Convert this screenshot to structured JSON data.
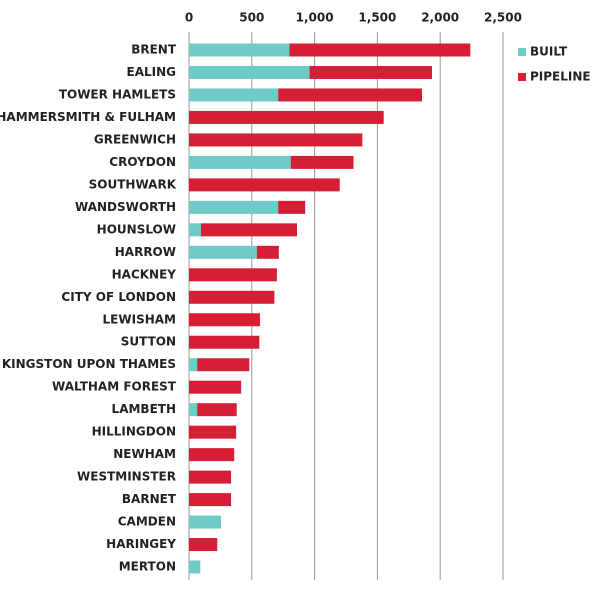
{
  "chart_data": {
    "type": "stacked-barh",
    "categories": [
      "BRENT",
      "EALING",
      "TOWER HAMLETS",
      "HAMMERSMITH & FULHAM",
      "GREENWICH",
      "CROYDON",
      "SOUTHWARK",
      "WANDSWORTH",
      "HOUNSLOW",
      "HARROW",
      "HACKNEY",
      "CITY OF LONDON",
      "LEWISHAM",
      "SUTTON",
      "KINGSTON UPON THAMES",
      "WALTHAM FOREST",
      "LAMBETH",
      "HILLINGDON",
      "NEWHAM",
      "WESTMINSTER",
      "BARNET",
      "CAMDEN",
      "HARINGEY",
      "MERTON"
    ],
    "series": [
      {
        "name": "BUILT",
        "color": "#6fcbc8",
        "values": [
          800,
          960,
          710,
          0,
          0,
          810,
          0,
          710,
          95,
          540,
          0,
          0,
          0,
          0,
          65,
          0,
          65,
          0,
          0,
          0,
          0,
          255,
          0,
          90
        ]
      },
      {
        "name": "PIPELINE",
        "color": "#d41f35",
        "values": [
          1440,
          975,
          1145,
          1550,
          1380,
          500,
          1200,
          215,
          765,
          175,
          700,
          680,
          565,
          560,
          415,
          415,
          315,
          375,
          360,
          335,
          335,
          0,
          225,
          0
        ]
      }
    ],
    "xlim": [
      0,
      2500
    ],
    "xticks": [
      0,
      500,
      {
        "value": 1000,
        "label": "1,000"
      },
      {
        "value": 1500,
        "label": "1,500"
      },
      {
        "value": 2000,
        "label": "2,000"
      },
      {
        "value": 2500,
        "label": "2,500"
      }
    ],
    "grid": true,
    "legend": "top-right"
  }
}
